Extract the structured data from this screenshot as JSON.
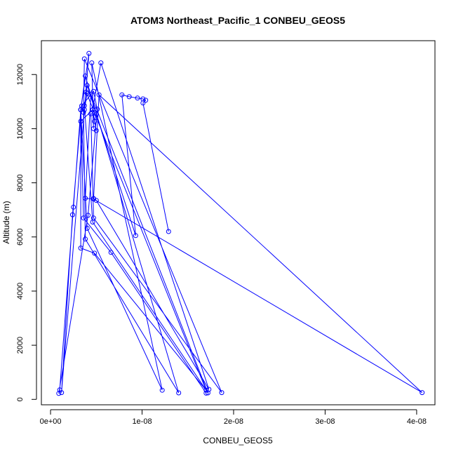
{
  "chart_data": {
    "type": "line",
    "title": "ATOM3 Northeast_Pacific_1 CONBEU_GEOS5",
    "xlabel": "CONBEU_GEOS5",
    "ylabel": "Altitude (m)",
    "xlim": [
      -1e-09,
      4.2e-08
    ],
    "ylim": [
      -200,
      13250
    ],
    "xticks": [
      0,
      1e-08,
      2e-08,
      3e-08,
      4e-08
    ],
    "xtick_labels": [
      "0e+00",
      "1e-08",
      "2e-08",
      "3e-08",
      "4e-08"
    ],
    "yticks": [
      0,
      2000,
      4000,
      6000,
      8000,
      10000,
      12000
    ],
    "ytick_labels": [
      "0",
      "2000",
      "4000",
      "6000",
      "8000",
      "10000",
      "12000"
    ],
    "grid": false,
    "legend": "none",
    "series": [
      {
        "color": "#0000ff",
        "marker": "open-circle",
        "points": [
          [
            1.7e-08,
            230
          ],
          [
            6.6e-09,
            5430
          ],
          [
            3.6e-09,
            6700
          ],
          [
            3.3e-09,
            10700
          ],
          [
            3.7e-09,
            10700
          ],
          [
            4e-09,
            11300
          ],
          [
            3.9e-09,
            11350
          ],
          [
            1.7e-08,
            340
          ],
          [
            4.8e-09,
            5400
          ],
          [
            3.3e-09,
            5590
          ],
          [
            3.3e-09,
            10270
          ],
          [
            4.6e-09,
            10700
          ],
          [
            4.7e-09,
            10000
          ],
          [
            4.5e-09,
            12430
          ],
          [
            1.22e-08,
            340
          ],
          [
            4e-09,
            6320
          ],
          [
            3.3e-09,
            10700
          ],
          [
            4.2e-09,
            12780
          ],
          [
            1.2e-09,
            250
          ],
          [
            2.4e-09,
            6820
          ],
          [
            3.4e-09,
            10840
          ],
          [
            4.7e-09,
            11380
          ],
          [
            5.1e-09,
            10720
          ],
          [
            4.1e-09,
            6800
          ],
          [
            9e-10,
            220
          ],
          [
            1e-09,
            350
          ],
          [
            2.5e-09,
            7100
          ],
          [
            3.3e-09,
            10700
          ],
          [
            3.8e-09,
            11950
          ],
          [
            1.4e-08,
            240
          ],
          [
            3.8e-09,
            5920
          ],
          [
            3.6e-09,
            10600
          ],
          [
            3.7e-09,
            12580
          ],
          [
            1.87e-08,
            250
          ],
          [
            4.7e-09,
            6700
          ],
          [
            4.4e-09,
            10550
          ],
          [
            5e-09,
            10540
          ],
          [
            4.8e-09,
            10270
          ],
          [
            5e-09,
            9930
          ],
          [
            4.6e-09,
            10690
          ],
          [
            5.5e-09,
            12430
          ],
          [
            1.73e-08,
            370
          ],
          [
            5e-09,
            7350
          ],
          [
            4.7e-09,
            7420
          ],
          [
            5.3e-09,
            11250
          ],
          [
            4.06e-08,
            250
          ],
          [
            4.7e-09,
            7400
          ],
          [
            3.8e-09,
            7430
          ],
          [
            4.4e-09,
            11270
          ],
          [
            1.72e-08,
            240
          ],
          [
            4.6e-09,
            6550
          ],
          [
            3.7e-09,
            10850
          ],
          [
            4e-09,
            11600
          ],
          [
            9.3e-09,
            6050
          ],
          [
            7.8e-09,
            11250
          ],
          [
            8.6e-09,
            11180
          ],
          [
            9.5e-09,
            11130
          ],
          [
            1.01e-08,
            11100
          ],
          [
            1.04e-08,
            11050
          ],
          [
            1.01e-08,
            10950
          ],
          [
            1.29e-08,
            6200
          ]
        ]
      }
    ]
  }
}
